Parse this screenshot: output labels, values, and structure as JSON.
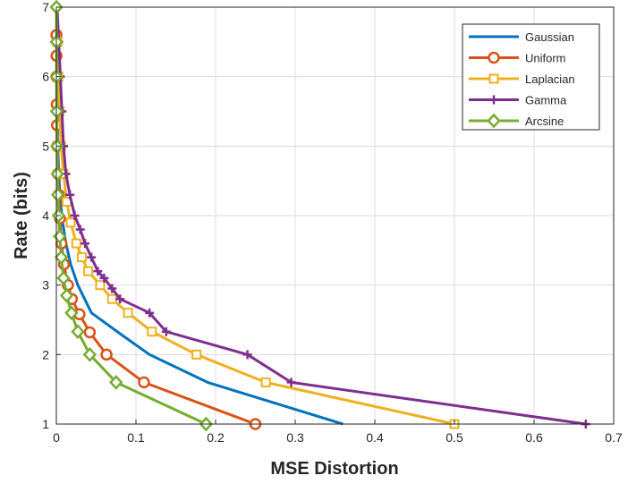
{
  "chart_data": {
    "type": "line",
    "title": "",
    "xlabel": "MSE Distortion",
    "ylabel": "Rate (bits)",
    "xlim": [
      0,
      0.7
    ],
    "ylim": [
      1,
      7
    ],
    "xticks": [
      "0",
      "0.1",
      "0.2",
      "0.3",
      "0.4",
      "0.5",
      "0.6",
      "0.7"
    ],
    "yticks": [
      "1",
      "2",
      "3",
      "4",
      "5",
      "6",
      "7"
    ],
    "grid": true,
    "legend_position": "top-right",
    "series": [
      {
        "name": "Gaussian",
        "color": "#0072BD",
        "marker": "none",
        "points": [
          [
            0.0004,
            7
          ],
          [
            0.0006,
            6.5
          ],
          [
            0.0009,
            6
          ],
          [
            0.0012,
            5.5
          ],
          [
            0.0018,
            5
          ],
          [
            0.003,
            4.6
          ],
          [
            0.005,
            4.2
          ],
          [
            0.008,
            3.9
          ],
          [
            0.012,
            3.6
          ],
          [
            0.018,
            3.3
          ],
          [
            0.027,
            3.0
          ],
          [
            0.044,
            2.6
          ],
          [
            0.08,
            2.3
          ],
          [
            0.117,
            2.0
          ],
          [
            0.19,
            1.6
          ],
          [
            0.36,
            1.0
          ]
        ]
      },
      {
        "name": "Uniform",
        "color": "#D95319",
        "marker": "circle",
        "points": [
          [
            0.0001,
            6.6
          ],
          [
            0.0002,
            6.3
          ],
          [
            0.0003,
            6.0
          ],
          [
            0.0005,
            5.6
          ],
          [
            0.0008,
            5.3
          ],
          [
            0.0012,
            5.0
          ],
          [
            0.0019,
            4.6
          ],
          [
            0.003,
            4.3
          ],
          [
            0.0045,
            3.96
          ],
          [
            0.0064,
            3.6
          ],
          [
            0.0095,
            3.3
          ],
          [
            0.0145,
            3.0
          ],
          [
            0.0195,
            2.8
          ],
          [
            0.029,
            2.58
          ],
          [
            0.042,
            2.32
          ],
          [
            0.063,
            2.0
          ],
          [
            0.11,
            1.6
          ],
          [
            0.25,
            1.0
          ]
        ]
      },
      {
        "name": "Laplacian",
        "color": "#EDB120",
        "marker": "square",
        "points": [
          [
            0.0015,
            6.5
          ],
          [
            0.0025,
            6.0
          ],
          [
            0.004,
            5.5
          ],
          [
            0.006,
            5.0
          ],
          [
            0.009,
            4.6
          ],
          [
            0.013,
            4.2
          ],
          [
            0.018,
            3.9
          ],
          [
            0.025,
            3.6
          ],
          [
            0.032,
            3.4
          ],
          [
            0.04,
            3.2
          ],
          [
            0.055,
            3.0
          ],
          [
            0.07,
            2.8
          ],
          [
            0.09,
            2.6
          ],
          [
            0.12,
            2.33
          ],
          [
            0.176,
            2.0
          ],
          [
            0.263,
            1.6
          ],
          [
            0.5,
            1.0
          ]
        ]
      },
      {
        "name": "Gamma",
        "color": "#7E2F8E",
        "marker": "plus",
        "points": [
          [
            0.001,
            7
          ],
          [
            0.003,
            6.5
          ],
          [
            0.005,
            6.0
          ],
          [
            0.007,
            5.5
          ],
          [
            0.009,
            5.0
          ],
          [
            0.012,
            4.6
          ],
          [
            0.017,
            4.3
          ],
          [
            0.023,
            4.0
          ],
          [
            0.03,
            3.8
          ],
          [
            0.036,
            3.6
          ],
          [
            0.044,
            3.4
          ],
          [
            0.052,
            3.2
          ],
          [
            0.06,
            3.1
          ],
          [
            0.07,
            2.95
          ],
          [
            0.08,
            2.8
          ],
          [
            0.117,
            2.6
          ],
          [
            0.138,
            2.33
          ],
          [
            0.24,
            2.0
          ],
          [
            0.295,
            1.6
          ],
          [
            0.665,
            1.0
          ]
        ]
      },
      {
        "name": "Arcsine",
        "color": "#77AC30",
        "marker": "diamond",
        "points": [
          [
            0.0001,
            7
          ],
          [
            0.0002,
            6.5
          ],
          [
            0.0003,
            6.0
          ],
          [
            0.0005,
            5.5
          ],
          [
            0.0008,
            5.0
          ],
          [
            0.0012,
            4.6
          ],
          [
            0.0018,
            4.3
          ],
          [
            0.0028,
            4.0
          ],
          [
            0.0042,
            3.7
          ],
          [
            0.0062,
            3.4
          ],
          [
            0.009,
            3.1
          ],
          [
            0.013,
            2.85
          ],
          [
            0.019,
            2.6
          ],
          [
            0.027,
            2.33
          ],
          [
            0.042,
            2.0
          ],
          [
            0.075,
            1.6
          ],
          [
            0.188,
            1.0
          ]
        ]
      }
    ]
  }
}
